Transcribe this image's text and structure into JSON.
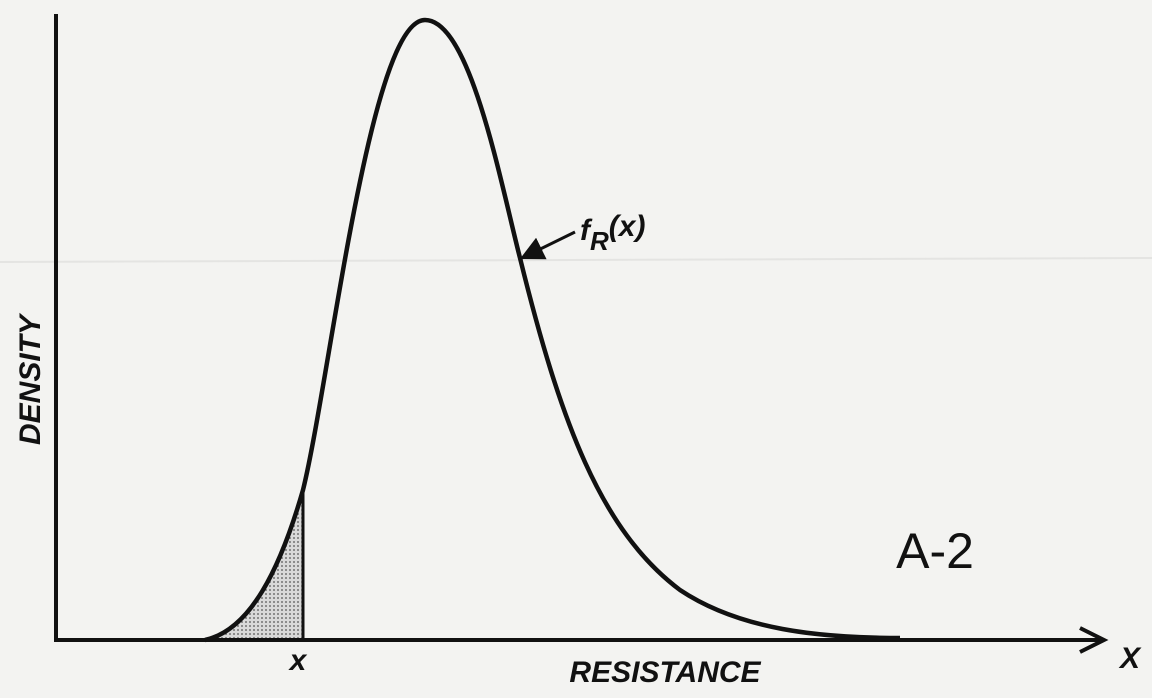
{
  "figure_label": "A-2",
  "axes": {
    "y_label": "DENSITY",
    "x_label": "RESISTANCE",
    "x_end": "X",
    "x_marker": "x"
  },
  "curve_label": {
    "symbol": "f",
    "subscript": "R",
    "argument": "(x)"
  }
}
